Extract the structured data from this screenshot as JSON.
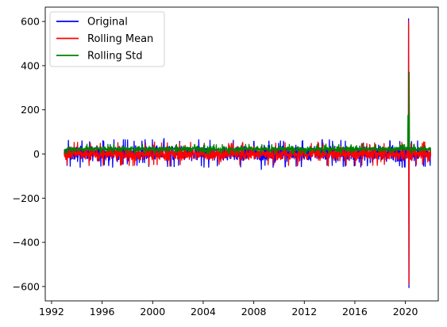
{
  "chart_data": {
    "type": "line",
    "title": "",
    "xlabel": "",
    "ylabel": "",
    "xlim": [
      1991.5,
      2022.6
    ],
    "ylim": [
      -665,
      665
    ],
    "xticks": [
      1992,
      1996,
      2000,
      2004,
      2008,
      2012,
      2016,
      2020
    ],
    "xtick_labels": [
      "1992",
      "1996",
      "2000",
      "2004",
      "2008",
      "2012",
      "2016",
      "2020"
    ],
    "yticks": [
      -600,
      -400,
      -200,
      0,
      200,
      400,
      600
    ],
    "ytick_labels": [
      "−600",
      "−400",
      "−200",
      "0",
      "200",
      "400",
      "600"
    ],
    "grid": false,
    "legend_position": "upper-left",
    "x_range": [
      1993.0,
      2022.0
    ],
    "series": [
      {
        "name": "Original",
        "color": "#0000ff",
        "typical_band": [
          -60,
          65
        ],
        "extremes": [
          {
            "x": 2020.25,
            "y": 612
          },
          {
            "x": 2020.28,
            "y": -605
          },
          {
            "x": 2000.9,
            "y": 70
          },
          {
            "x": 2008.6,
            "y": -70
          }
        ]
      },
      {
        "name": "Rolling Mean",
        "color": "#ff0000",
        "typical_band": [
          -55,
          55
        ],
        "extremes": [
          {
            "x": 2020.25,
            "y": 600
          },
          {
            "x": 2020.28,
            "y": -590
          }
        ]
      },
      {
        "name": "Rolling Std",
        "color": "#008000",
        "typical_band": [
          0,
          45
        ],
        "extremes": [
          {
            "x": 2020.2,
            "y": 175
          },
          {
            "x": 2020.3,
            "y": 370
          }
        ]
      }
    ]
  }
}
